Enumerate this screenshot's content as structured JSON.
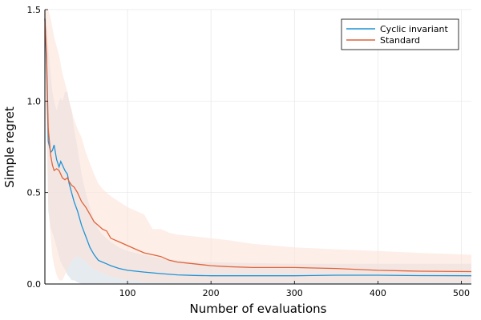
{
  "chart_data": {
    "type": "line",
    "title": "",
    "xlabel": "Number of evaluations",
    "ylabel": "Simple regret",
    "xlim": [
      1,
      512
    ],
    "ylim": [
      0,
      1.5
    ],
    "xticks": [
      100,
      200,
      300,
      400,
      500
    ],
    "xtick_labels": [
      "100",
      "200",
      "300",
      "400",
      "500"
    ],
    "yticks": [
      0,
      0.5,
      1.0,
      1.5
    ],
    "ytick_labels": [
      "0.0",
      "0.5",
      "1.0",
      "1.5"
    ],
    "grid": true,
    "legend_position": "top-right",
    "series": [
      {
        "name": "Cyclic invariant",
        "color": "#1f93d6",
        "band_color": "#d5dde6",
        "x": [
          1,
          3,
          5,
          8,
          10,
          12,
          15,
          18,
          20,
          22,
          25,
          28,
          30,
          33,
          36,
          40,
          45,
          50,
          55,
          60,
          65,
          70,
          75,
          80,
          90,
          100,
          120,
          140,
          160,
          180,
          200,
          250,
          300,
          350,
          400,
          450,
          512
        ],
        "y": [
          1.45,
          1.2,
          0.78,
          0.72,
          0.73,
          0.76,
          0.68,
          0.64,
          0.67,
          0.65,
          0.62,
          0.6,
          0.55,
          0.5,
          0.45,
          0.4,
          0.32,
          0.26,
          0.2,
          0.16,
          0.13,
          0.12,
          0.11,
          0.1,
          0.085,
          0.075,
          0.065,
          0.057,
          0.05,
          0.047,
          0.045,
          0.045,
          0.045,
          0.048,
          0.048,
          0.046,
          0.045
        ],
        "upper": [
          1.5,
          1.45,
          1.3,
          1.15,
          1.05,
          1.0,
          0.95,
          1.0,
          1.02,
          1.0,
          1.05,
          1.05,
          1.0,
          0.95,
          0.85,
          0.75,
          0.6,
          0.5,
          0.42,
          0.35,
          0.3,
          0.27,
          0.25,
          0.23,
          0.2,
          0.18,
          0.16,
          0.14,
          0.13,
          0.12,
          0.12,
          0.115,
          0.11,
          0.11,
          0.11,
          0.11,
          0.11
        ],
        "lower": [
          1.35,
          0.9,
          0.4,
          0.3,
          0.28,
          0.25,
          0.2,
          0.15,
          0.12,
          0.1,
          0.08,
          0.05,
          0.04,
          0.02,
          0.02,
          0.01,
          0,
          0,
          0,
          0,
          0,
          0,
          0,
          0,
          0,
          0,
          0,
          0,
          0,
          0,
          0,
          0,
          0,
          0,
          0,
          0,
          0
        ]
      },
      {
        "name": "Standard",
        "color": "#e0643a",
        "band_color": "#fbe3d8",
        "x": [
          1,
          3,
          5,
          8,
          10,
          12,
          15,
          18,
          20,
          22,
          25,
          28,
          30,
          33,
          36,
          40,
          45,
          50,
          55,
          60,
          65,
          70,
          75,
          80,
          90,
          100,
          110,
          120,
          130,
          140,
          150,
          160,
          180,
          200,
          220,
          250,
          300,
          350,
          400,
          450,
          512
        ],
        "y": [
          1.45,
          1.25,
          0.85,
          0.7,
          0.65,
          0.62,
          0.63,
          0.62,
          0.6,
          0.58,
          0.57,
          0.58,
          0.56,
          0.54,
          0.53,
          0.5,
          0.45,
          0.42,
          0.38,
          0.34,
          0.32,
          0.3,
          0.29,
          0.25,
          0.23,
          0.21,
          0.19,
          0.17,
          0.16,
          0.15,
          0.13,
          0.12,
          0.11,
          0.1,
          0.095,
          0.09,
          0.09,
          0.085,
          0.075,
          0.07,
          0.068
        ],
        "upper": [
          1.5,
          1.5,
          1.5,
          1.45,
          1.4,
          1.35,
          1.3,
          1.25,
          1.2,
          1.15,
          1.1,
          1.05,
          1.0,
          0.95,
          0.9,
          0.85,
          0.8,
          0.72,
          0.66,
          0.6,
          0.55,
          0.52,
          0.5,
          0.48,
          0.45,
          0.42,
          0.4,
          0.38,
          0.3,
          0.3,
          0.28,
          0.27,
          0.26,
          0.25,
          0.24,
          0.22,
          0.2,
          0.19,
          0.18,
          0.17,
          0.16
        ],
        "lower": [
          1.3,
          0.9,
          0.45,
          0.25,
          0.15,
          0.1,
          0.05,
          0.02,
          0.02,
          0.02,
          0.05,
          0.08,
          0.1,
          0.12,
          0.14,
          0.15,
          0.14,
          0.12,
          0.1,
          0.08,
          0.07,
          0.06,
          0.05,
          0.04,
          0.03,
          0.02,
          0.02,
          0.01,
          0.01,
          0.01,
          0.01,
          0.01,
          0.01,
          0.01,
          0.01,
          0.01,
          0.01,
          0.01,
          0.01,
          0.01,
          0.01
        ]
      }
    ]
  }
}
